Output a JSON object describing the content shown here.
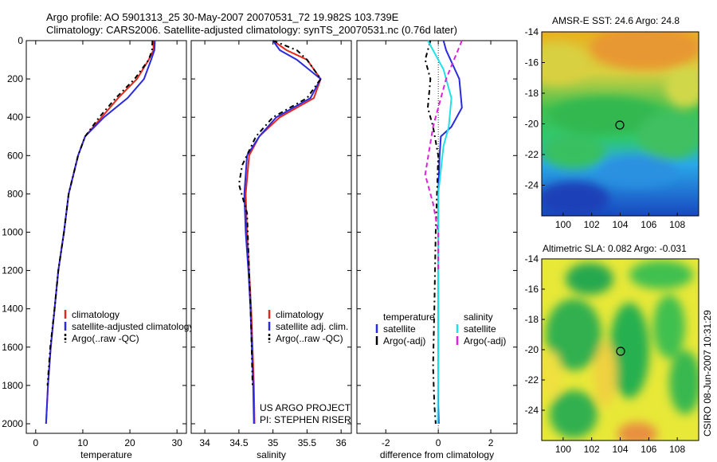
{
  "header": {
    "line1": "Argo profile: AO 5901313_25 30-May-2007 20070531_72 19.982S 103.739E",
    "line2": "Climatology: CARS2006. Satellite-adjusted climatology: synTS_20070531.nc (0.76d later)"
  },
  "side_label": "CSIRO 08-Jun-2007 10:31:29",
  "colors": {
    "climatology": "#e8281e",
    "satellite_adjusted": "#2a2adf",
    "argo": "#000000",
    "salinity_satellite": "#20e0e8",
    "salinity_argo": "#e020e0"
  },
  "chart_data": [
    {
      "type": "line",
      "panel": "temperature",
      "xlabel": "temperature",
      "xlim": [
        -2,
        32
      ],
      "xticks": [
        "0",
        "10",
        "20",
        "30"
      ],
      "ylim": [
        0,
        2050
      ],
      "yticks": [
        "0",
        "200",
        "400",
        "600",
        "800",
        "1000",
        "1200",
        "1400",
        "1600",
        "1800",
        "2000"
      ],
      "legend": [
        "climatology",
        "satellite-adjusted climatology",
        "Argo(..raw -QC)"
      ],
      "series": [
        {
          "name": "climatology",
          "color": "#e8281e",
          "x": [
            25.0,
            25.0,
            24.0,
            21.5,
            17.5,
            14.0,
            10.5,
            9.0,
            7.0,
            6.0,
            4.8,
            4.0,
            3.2,
            2.6,
            2.2
          ],
          "y": [
            0,
            50,
            100,
            200,
            300,
            400,
            500,
            600,
            800,
            1000,
            1200,
            1400,
            1600,
            1800,
            2000
          ]
        },
        {
          "name": "satellite-adjusted climatology",
          "color": "#2a2adf",
          "x": [
            25.3,
            25.2,
            24.5,
            23.0,
            19.5,
            14.5,
            10.5,
            9.0,
            7.0,
            6.0,
            4.8,
            4.0,
            3.2,
            2.6,
            2.2
          ],
          "y": [
            0,
            50,
            100,
            200,
            300,
            400,
            500,
            600,
            800,
            1000,
            1200,
            1400,
            1600,
            1800,
            2000
          ]
        },
        {
          "name": "Argo(..raw -QC)",
          "color": "#000000",
          "x": [
            24.8,
            24.7,
            24.0,
            21.0,
            17.0,
            13.5,
            10.5,
            9.0,
            7.0,
            6.0,
            4.8,
            4.0,
            3.1,
            2.5
          ],
          "y": [
            0,
            50,
            100,
            200,
            300,
            400,
            500,
            600,
            800,
            1000,
            1200,
            1400,
            1600,
            1800
          ]
        }
      ]
    },
    {
      "type": "line",
      "panel": "salinity",
      "xlabel": "salinity",
      "xlim": [
        33.8,
        36.15
      ],
      "xticks": [
        "34",
        "34.5",
        "35",
        "35.5",
        "36"
      ],
      "ylim": [
        0,
        2050
      ],
      "legend": [
        "climatology",
        "satellite adj. clim.",
        "Argo(..raw -QC)"
      ],
      "annotations": [
        "US ARGO PROJECT",
        "PI: STEPHEN RISER"
      ],
      "series": [
        {
          "name": "climatology",
          "color": "#e8281e",
          "x": [
            35.0,
            35.2,
            35.5,
            35.7,
            35.6,
            35.1,
            34.8,
            34.65,
            34.6,
            34.62,
            34.65,
            34.68,
            34.7,
            34.72,
            34.73
          ],
          "y": [
            0,
            50,
            100,
            200,
            300,
            400,
            500,
            600,
            800,
            1000,
            1200,
            1400,
            1600,
            1800,
            2000
          ]
        },
        {
          "name": "satellite adj. clim.",
          "color": "#2a2adf",
          "x": [
            35.0,
            35.1,
            35.35,
            35.7,
            35.55,
            35.05,
            34.8,
            34.62,
            34.58,
            34.6,
            34.64,
            34.67,
            34.69,
            34.71,
            34.72
          ],
          "y": [
            0,
            50,
            100,
            200,
            300,
            400,
            500,
            600,
            800,
            1000,
            1200,
            1400,
            1600,
            1800,
            2000
          ]
        },
        {
          "name": "Argo(..raw -QC)",
          "color": "#000000",
          "x": [
            35.0,
            35.35,
            35.5,
            35.7,
            35.5,
            35.0,
            34.75,
            34.55,
            34.5,
            34.62,
            34.65,
            34.68,
            34.7
          ],
          "y": [
            0,
            50,
            100,
            200,
            300,
            400,
            500,
            650,
            750,
            900,
            1200,
            1500,
            1800
          ]
        }
      ]
    },
    {
      "type": "line",
      "panel": "difference",
      "xlabel": "difference from climatology",
      "xlim": [
        -3.1,
        3.0
      ],
      "xticks": [
        "-2",
        "0",
        "2"
      ],
      "ylim": [
        0,
        2050
      ],
      "legend_headers": [
        "temperature",
        "salinity"
      ],
      "legend": [
        "satellite",
        "Argo(-adj)",
        "satellite",
        "Argo(-adj)"
      ],
      "series": [
        {
          "name": "temperature satellite",
          "color": "#2a2adf",
          "x": [
            0.2,
            0.3,
            0.8,
            0.9,
            0.5,
            0.1,
            0.05,
            0.0,
            0.0,
            0.0,
            0.0,
            0.0,
            0.02
          ],
          "y": [
            0,
            50,
            200,
            350,
            450,
            500,
            600,
            800,
            1000,
            1400,
            1700,
            1900,
            2000
          ]
        },
        {
          "name": "temperature Argo(-adj)",
          "color": "#000000",
          "x": [
            -0.3,
            -0.5,
            -0.3,
            -0.4,
            -0.2,
            0.0,
            -0.05,
            -0.1,
            -0.15,
            -0.2,
            -0.15,
            -0.1
          ],
          "y": [
            0,
            100,
            200,
            350,
            450,
            600,
            800,
            1000,
            1400,
            1700,
            1900,
            2000
          ]
        },
        {
          "name": "salinity satellite",
          "color": "#20e0e8",
          "x": [
            -0.4,
            -0.2,
            0.2,
            0.5,
            0.4,
            0.2,
            0.0,
            0.0,
            0.0,
            -0.02
          ],
          "y": [
            0,
            50,
            150,
            300,
            450,
            550,
            800,
            1200,
            1700,
            2000
          ]
        },
        {
          "name": "salinity Argo(-adj)",
          "color": "#e020e0",
          "x": [
            0.9,
            0.6,
            0.3,
            0.0,
            -0.2,
            -0.5,
            -0.2,
            0.0,
            0.0
          ],
          "y": [
            0,
            100,
            200,
            350,
            450,
            700,
            850,
            1000,
            1200
          ]
        }
      ]
    },
    {
      "type": "heatmap",
      "panel": "sst-map",
      "title": "AMSR-E SST: 24.6 Argo: 24.8",
      "xlim": [
        98.5,
        109.5
      ],
      "ylim": [
        -26,
        -14
      ],
      "xticks": [
        "100",
        "102",
        "104",
        "106",
        "108"
      ],
      "yticks": [
        "-14",
        "-16",
        "-18",
        "-20",
        "-22",
        "-24"
      ],
      "marker": {
        "lon": 103.739,
        "lat": -19.982
      }
    },
    {
      "type": "heatmap",
      "panel": "sla-map",
      "title": "Altimetric SLA: 0.082 Argo: -0.031",
      "xlim": [
        98.5,
        109.5
      ],
      "ylim": [
        -26,
        -14
      ],
      "xticks": [
        "100",
        "102",
        "104",
        "106",
        "108"
      ],
      "yticks": [
        "-14",
        "-16",
        "-18",
        "-20",
        "-22",
        "-24"
      ],
      "marker": {
        "lon": 103.739,
        "lat": -19.982
      }
    }
  ]
}
